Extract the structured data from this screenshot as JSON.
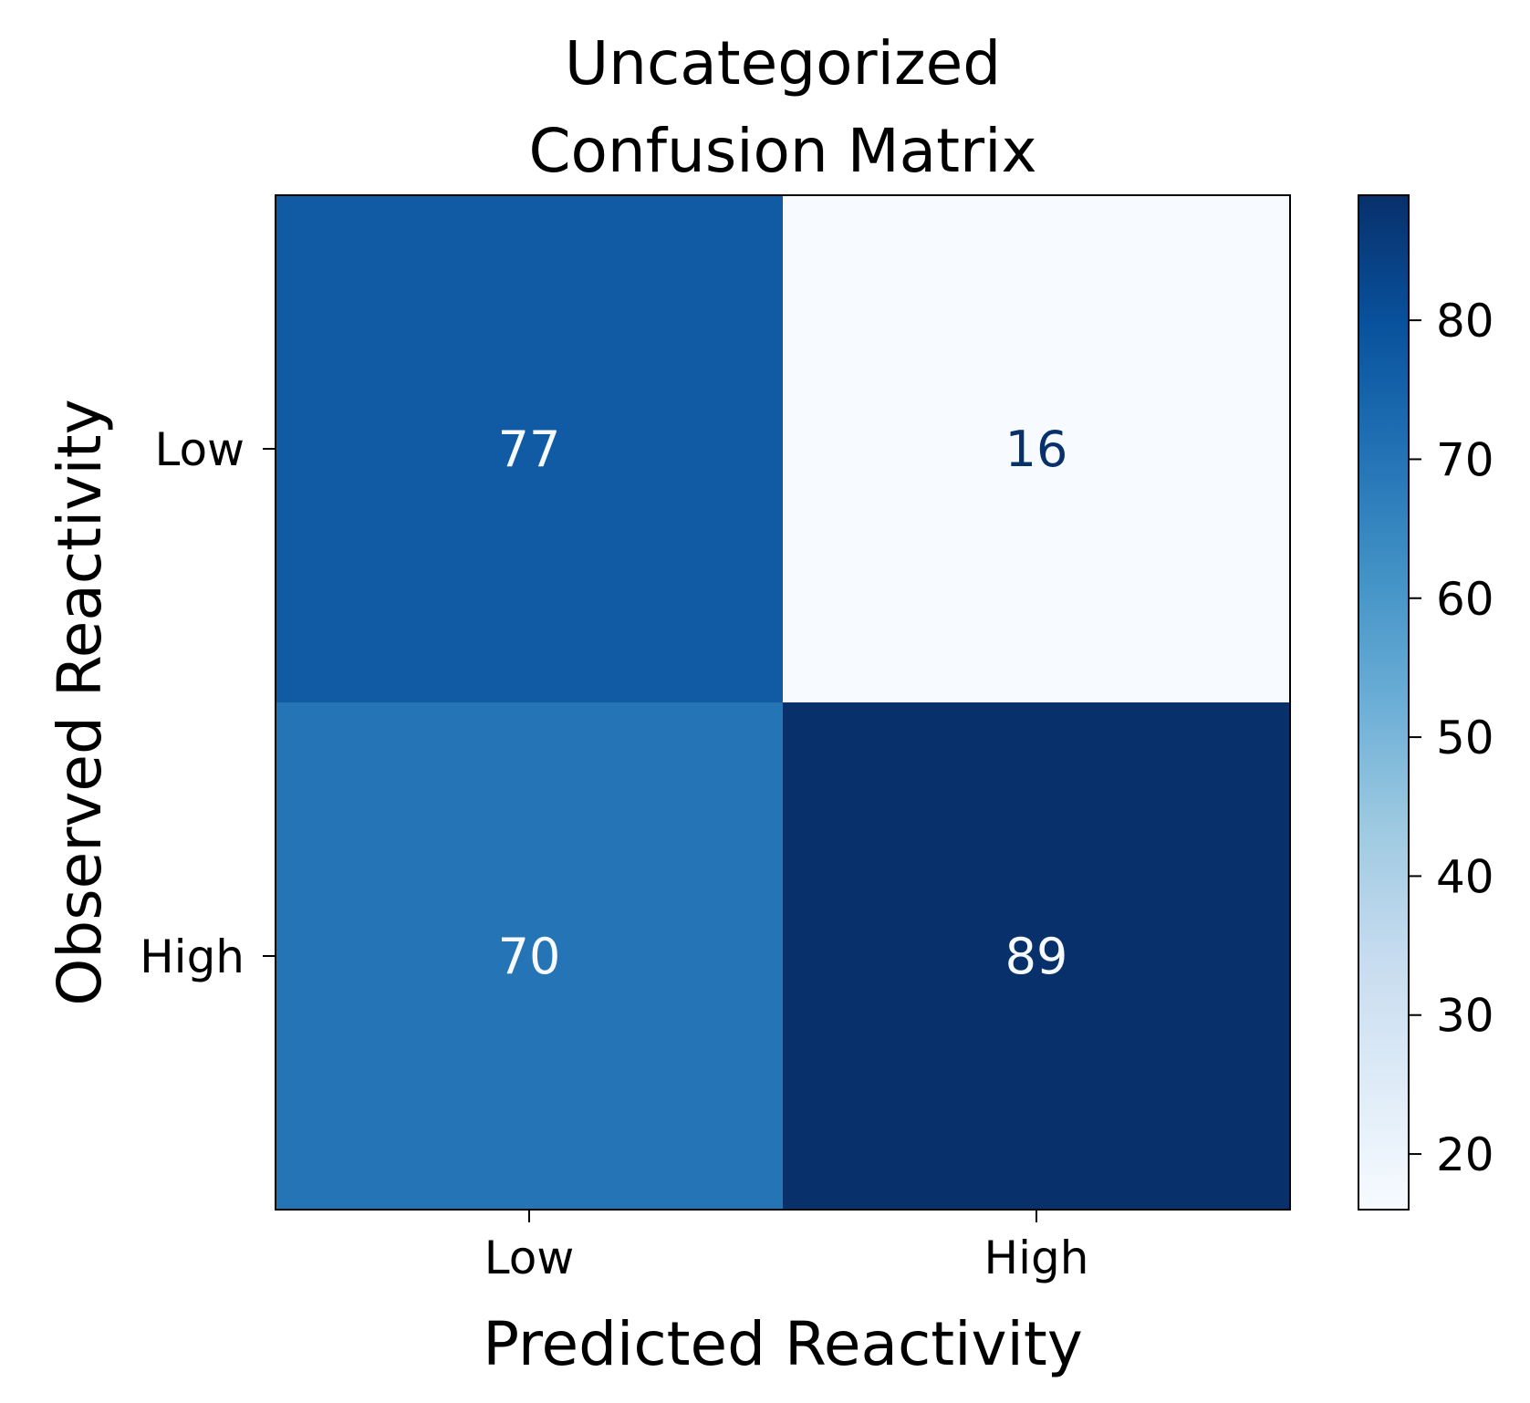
{
  "chart_data": {
    "type": "heatmap",
    "title_lines": [
      "Uncategorized",
      "Confusion Matrix"
    ],
    "xlabel": "Predicted Reactivity",
    "ylabel": "Observed Reactivity",
    "x_categories": [
      "Low",
      "High"
    ],
    "y_categories": [
      "Low",
      "High"
    ],
    "values": [
      [
        77,
        16
      ],
      [
        70,
        89
      ]
    ],
    "colormap": "Blues",
    "color_range": [
      16,
      89
    ],
    "colorbar_ticks": [
      20,
      30,
      40,
      50,
      60,
      70,
      80
    ],
    "grid": false,
    "legend": "colorbar-right"
  }
}
